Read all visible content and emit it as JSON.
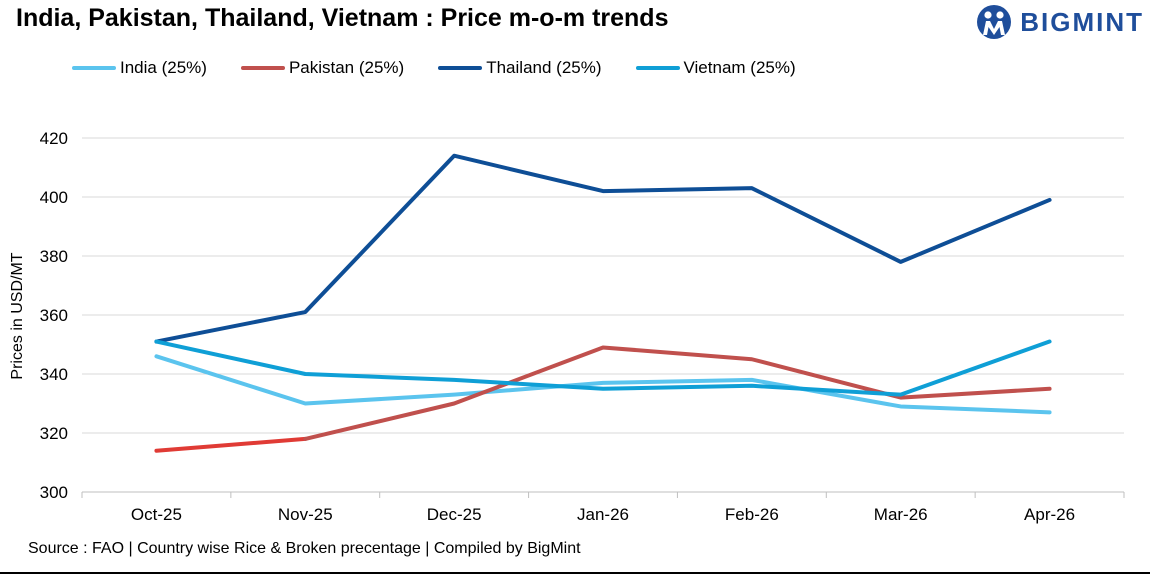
{
  "header": {
    "title": "India, Pakistan, Thailand, Vietnam : Price m-o-m trends",
    "logo_text": "BIGMINT"
  },
  "footer": {
    "source": "Source : FAO | Country wise Rice & Broken precentage | Compiled by BigMint"
  },
  "chart_data": {
    "type": "line",
    "title": "India, Pakistan, Thailand, Vietnam : Price m-o-m trends",
    "xlabel": "",
    "ylabel": "Prices in USD/MT",
    "x": [
      "Oct-25",
      "Nov-25",
      "Dec-25",
      "Jan-26",
      "Feb-26",
      "Mar-26",
      "Apr-26"
    ],
    "ylim": [
      300,
      420
    ],
    "yticks": [
      300,
      320,
      340,
      360,
      380,
      400,
      420
    ],
    "grid": true,
    "legend_position": "top-left",
    "series": [
      {
        "name": "India (25%)",
        "color": "#5bc4ee",
        "values": [
          346,
          330,
          333,
          337,
          338,
          329,
          327
        ]
      },
      {
        "name": "Pakistan (25%)",
        "color": "#c0504d",
        "start_color": "#e03b35",
        "values": [
          314,
          318,
          330,
          349,
          345,
          332,
          335
        ]
      },
      {
        "name": "Thailand (25%)",
        "color": "#0e4e96",
        "values": [
          351,
          361,
          414,
          402,
          403,
          378,
          399
        ]
      },
      {
        "name": "Vietnam (25%)",
        "color": "#0f9fd6",
        "values": [
          351,
          340,
          338,
          335,
          336,
          333,
          351
        ]
      }
    ]
  }
}
